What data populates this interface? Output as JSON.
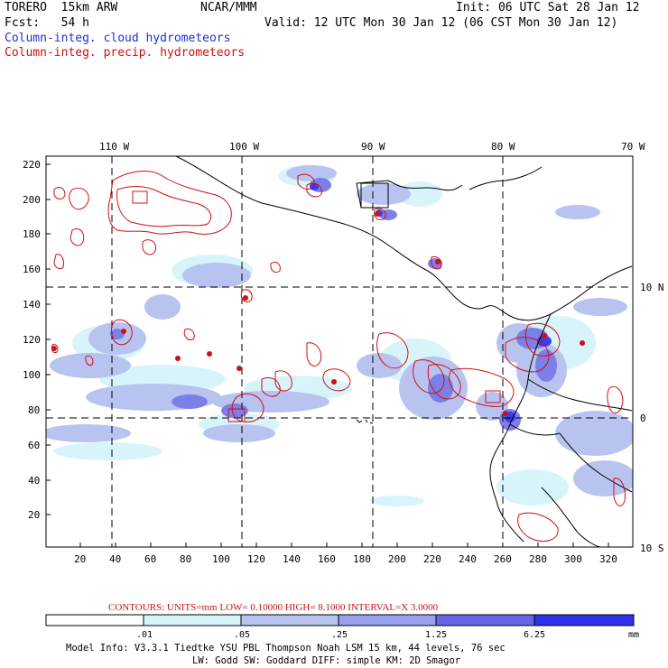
{
  "header": {
    "model": "TORERO  15km ARW",
    "org": "NCAR/MMM",
    "init": "Init: 06 UTC Sat 28 Jan 12",
    "fcst": "Fcst:   54 h",
    "valid": "Valid: 12 UTC Mon 30 Jan 12 (06 CST Mon 30 Jan 12)",
    "field1": "Column-integ. cloud hydrometeors",
    "field2": "Column-integ. precip. hydrometeors"
  },
  "colors": {
    "cloud_text": "#1f2fd0",
    "precip_contour": "#d01010",
    "fill_levels": [
      "#ffffff",
      "#d8f4fb",
      "#b9c3f0",
      "#9aa0ec",
      "#6866e8",
      "#3232ee"
    ]
  },
  "axes": {
    "top_lon": [
      "110 W",
      "100 W",
      "90 W",
      "80 W",
      "70 W"
    ],
    "right_lat": [
      "10 N",
      "0",
      "10 S"
    ],
    "left_y": [
      "220",
      "200",
      "180",
      "160",
      "140",
      "120",
      "100",
      "80",
      "60",
      "40",
      "20"
    ],
    "bottom_x": [
      "20",
      "40",
      "60",
      "80",
      "100",
      "120",
      "140",
      "160",
      "180",
      "200",
      "220",
      "240",
      "260",
      "280",
      "300",
      "320"
    ]
  },
  "contours_info": {
    "label": "CONTOURS:  UNITS=mm  LOW= 0.10000     HIGH=  8.1000     INTERVAL=X  3.0000"
  },
  "colorbar": {
    "ticks": [
      ".01",
      ".05",
      ".25",
      "1.25",
      "6.25"
    ],
    "unit": "mm"
  },
  "footer": {
    "line1": "Model Info: V3.3.1   Tiedtke YSU PBL  Thompson    Noah LSM  15 km,   44 levels,   76 sec",
    "line2": "LW: Godd SW: Goddard DIFF: simple KM: 2D Smagor"
  }
}
